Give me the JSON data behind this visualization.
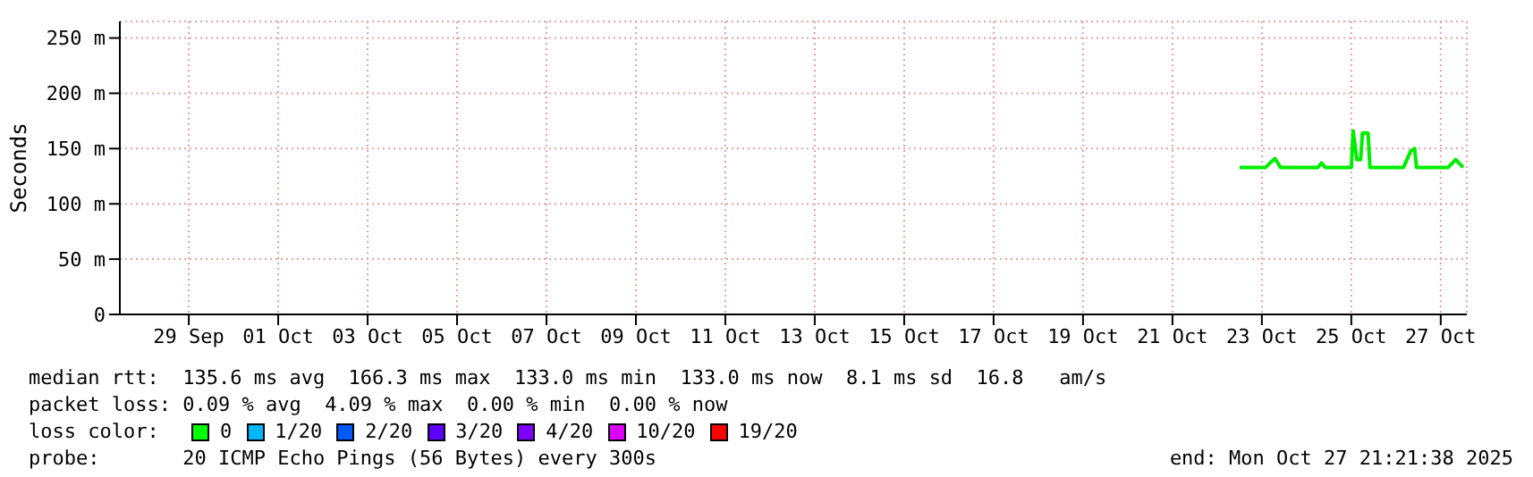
{
  "chart_data": {
    "type": "line",
    "ylabel": "Seconds",
    "x": [
      "2025-10-22T12:00",
      "2025-10-23T02:00",
      "2025-10-23T05:00",
      "2025-10-23T07:00",
      "2025-10-23T10:00",
      "2025-10-24T06:00",
      "2025-10-24T08:00",
      "2025-10-24T10:00",
      "2025-10-25T00:00",
      "2025-10-25T01:00",
      "2025-10-25T03:00",
      "2025-10-25T05:00",
      "2025-10-25T06:00",
      "2025-10-25T09:00",
      "2025-10-25T10:00",
      "2025-10-26T04:00",
      "2025-10-26T08:00",
      "2025-10-26T10:00",
      "2025-10-26T11:00",
      "2025-10-27T04:00",
      "2025-10-27T08:00",
      "2025-10-27T12:00"
    ],
    "series": [
      {
        "color": "#00ee00",
        "values": [
          133,
          133,
          138,
          141,
          133,
          133,
          137,
          133,
          133,
          166,
          140,
          140,
          164,
          164,
          133,
          133,
          148,
          150,
          133,
          133,
          140,
          133
        ]
      }
    ],
    "xlim": [
      "2025-09-27T11:00",
      "2025-10-27T14:00"
    ],
    "xticks": [
      {
        "value": "2025-09-29",
        "label": "29 Sep"
      },
      {
        "value": "2025-10-01",
        "label": "01 Oct"
      },
      {
        "value": "2025-10-03",
        "label": "03 Oct"
      },
      {
        "value": "2025-10-05",
        "label": "05 Oct"
      },
      {
        "value": "2025-10-07",
        "label": "07 Oct"
      },
      {
        "value": "2025-10-09",
        "label": "09 Oct"
      },
      {
        "value": "2025-10-11",
        "label": "11 Oct"
      },
      {
        "value": "2025-10-13",
        "label": "13 Oct"
      },
      {
        "value": "2025-10-15",
        "label": "15 Oct"
      },
      {
        "value": "2025-10-17",
        "label": "17 Oct"
      },
      {
        "value": "2025-10-19",
        "label": "19 Oct"
      },
      {
        "value": "2025-10-21",
        "label": "21 Oct"
      },
      {
        "value": "2025-10-23",
        "label": "23 Oct"
      },
      {
        "value": "2025-10-25",
        "label": "25 Oct"
      },
      {
        "value": "2025-10-27",
        "label": "27 Oct"
      }
    ],
    "ylim": [
      0,
      265
    ],
    "yticks": [
      0,
      {
        "value": 50,
        "label": "50 m"
      },
      {
        "value": 100,
        "label": "100 m"
      },
      {
        "value": 150,
        "label": "150 m"
      },
      {
        "value": 200,
        "label": "200 m"
      },
      {
        "value": 250,
        "label": "250 m"
      }
    ],
    "grid": true,
    "annotations": [
      "median rtt:  135.6 ms avg  166.3 ms max  133.0 ms min  133.0 ms now  8.1 ms sd  16.8   am/s",
      "packet loss: 0.09 % avg  4.09 % max  0.00 % min  0.00 % now",
      "loss color:",
      "0",
      "1/20",
      "2/20",
      "3/20",
      "4/20",
      "10/20",
      "19/20",
      "probe:       20 ICMP Echo Pings (56 Bytes) every 300s",
      "end: Mon Oct 27 21:21:38 2025"
    ]
  }
}
